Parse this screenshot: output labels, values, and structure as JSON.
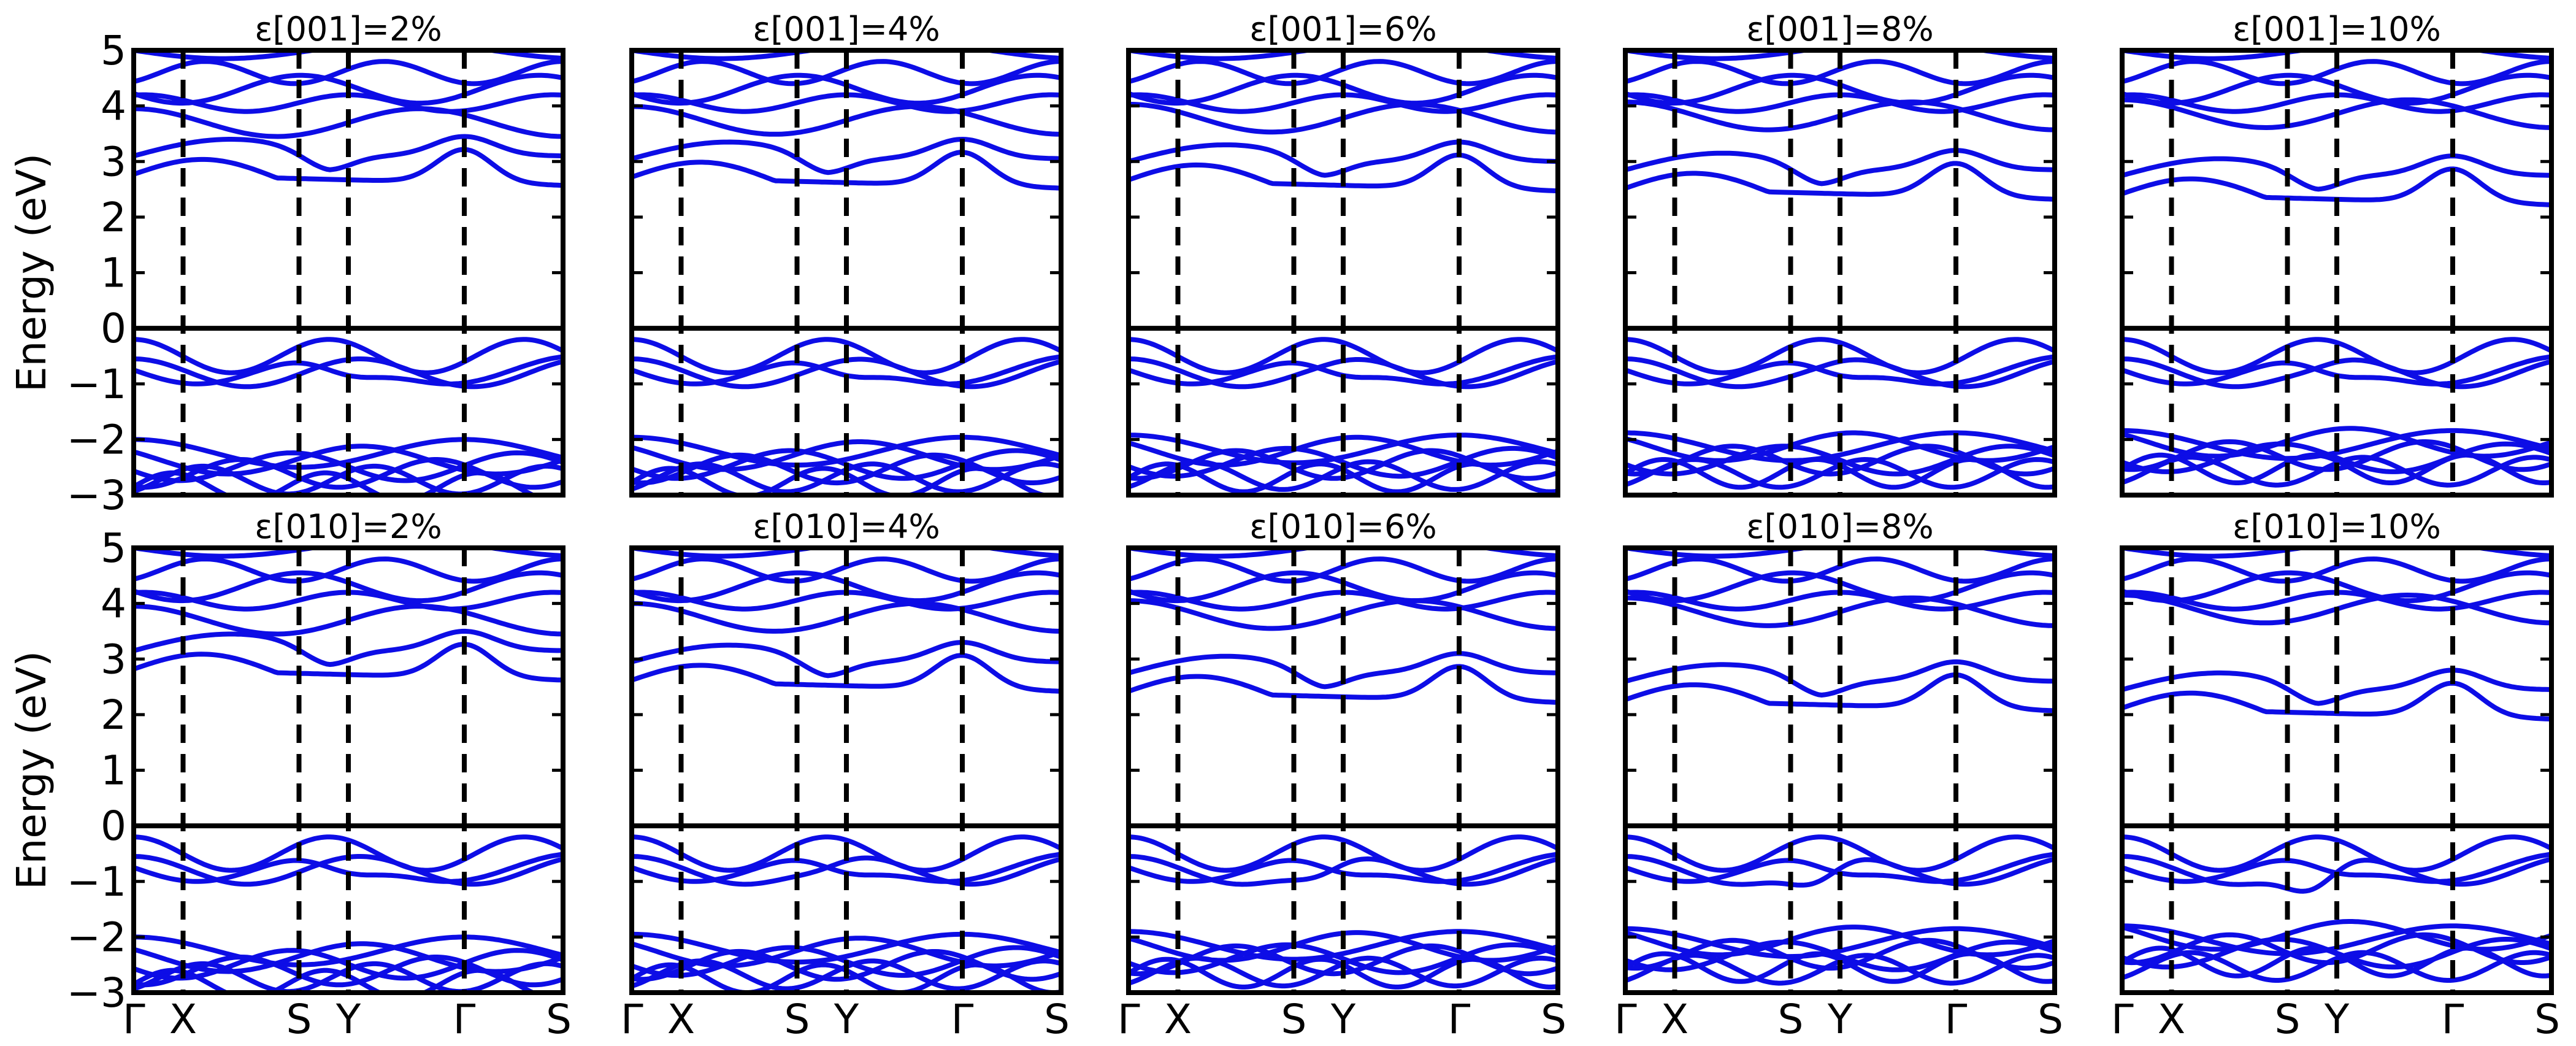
{
  "figure": {
    "ylabel": "Energy (eV)",
    "yticks": [
      "5",
      "4",
      "3",
      "2",
      "1",
      "0",
      "−1",
      "−2",
      "−3"
    ],
    "xticks": [
      "Γ",
      "X",
      "S",
      "Y",
      "Γ",
      "S"
    ]
  },
  "chart_data": [
    {
      "type": "line",
      "title": "ε[001]=2%",
      "ylabel": "Energy (eV)",
      "ylim": [
        -3,
        5
      ],
      "x_labels": [
        "Γ",
        "X",
        "S",
        "Y",
        "Γ",
        "S"
      ],
      "gap": {
        "cb_min": 2.75,
        "vb_max": -0.2
      }
    },
    {
      "type": "line",
      "title": "ε[001]=4%",
      "ylim": [
        -3,
        5
      ],
      "x_labels": [
        "Γ",
        "X",
        "S",
        "Y",
        "Γ",
        "S"
      ],
      "gap": {
        "cb_min": 2.7,
        "vb_max": -0.2
      }
    },
    {
      "type": "line",
      "title": "ε[001]=6%",
      "ylim": [
        -3,
        5
      ],
      "x_labels": [
        "Γ",
        "X",
        "S",
        "Y",
        "Γ",
        "S"
      ],
      "gap": {
        "cb_min": 2.65,
        "vb_max": -0.2
      }
    },
    {
      "type": "line",
      "title": "ε[001]=8%",
      "ylim": [
        -3,
        5
      ],
      "x_labels": [
        "Γ",
        "X",
        "S",
        "Y",
        "Γ",
        "S"
      ],
      "gap": {
        "cb_min": 2.5,
        "vb_max": -0.2
      }
    },
    {
      "type": "line",
      "title": "ε[001]=10%",
      "ylim": [
        -3,
        5
      ],
      "x_labels": [
        "Γ",
        "X",
        "S",
        "Y",
        "Γ",
        "S"
      ],
      "gap": {
        "cb_min": 2.4,
        "vb_max": -0.2
      }
    },
    {
      "type": "line",
      "title": "ε[010]=2%",
      "ylabel": "Energy (eV)",
      "ylim": [
        -3,
        5
      ],
      "x_labels": [
        "Γ",
        "X",
        "S",
        "Y",
        "Γ",
        "S"
      ],
      "gap": {
        "cb_min": 2.8,
        "vb_max": -0.25
      }
    },
    {
      "type": "line",
      "title": "ε[010]=4%",
      "ylim": [
        -3,
        5
      ],
      "x_labels": [
        "Γ",
        "X",
        "S",
        "Y",
        "Γ",
        "S"
      ],
      "gap": {
        "cb_min": 2.6,
        "vb_max": -0.25
      }
    },
    {
      "type": "line",
      "title": "ε[010]=6%",
      "ylim": [
        -3,
        5
      ],
      "x_labels": [
        "Γ",
        "X",
        "S",
        "Y",
        "Γ",
        "S"
      ],
      "gap": {
        "cb_min": 2.4,
        "vb_max": -0.25
      }
    },
    {
      "type": "line",
      "title": "ε[010]=8%",
      "ylim": [
        -3,
        5
      ],
      "x_labels": [
        "Γ",
        "X",
        "S",
        "Y",
        "Γ",
        "S"
      ],
      "gap": {
        "cb_min": 2.25,
        "vb_max": -0.25
      }
    },
    {
      "type": "line",
      "title": "ε[010]=10%",
      "ylim": [
        -3,
        5
      ],
      "x_labels": [
        "Γ",
        "X",
        "S",
        "Y",
        "Γ",
        "S"
      ],
      "gap": {
        "cb_min": 2.1,
        "vb_max": -0.25
      }
    }
  ],
  "colors": {
    "band": "#0d0de6",
    "axis": "#000000"
  }
}
